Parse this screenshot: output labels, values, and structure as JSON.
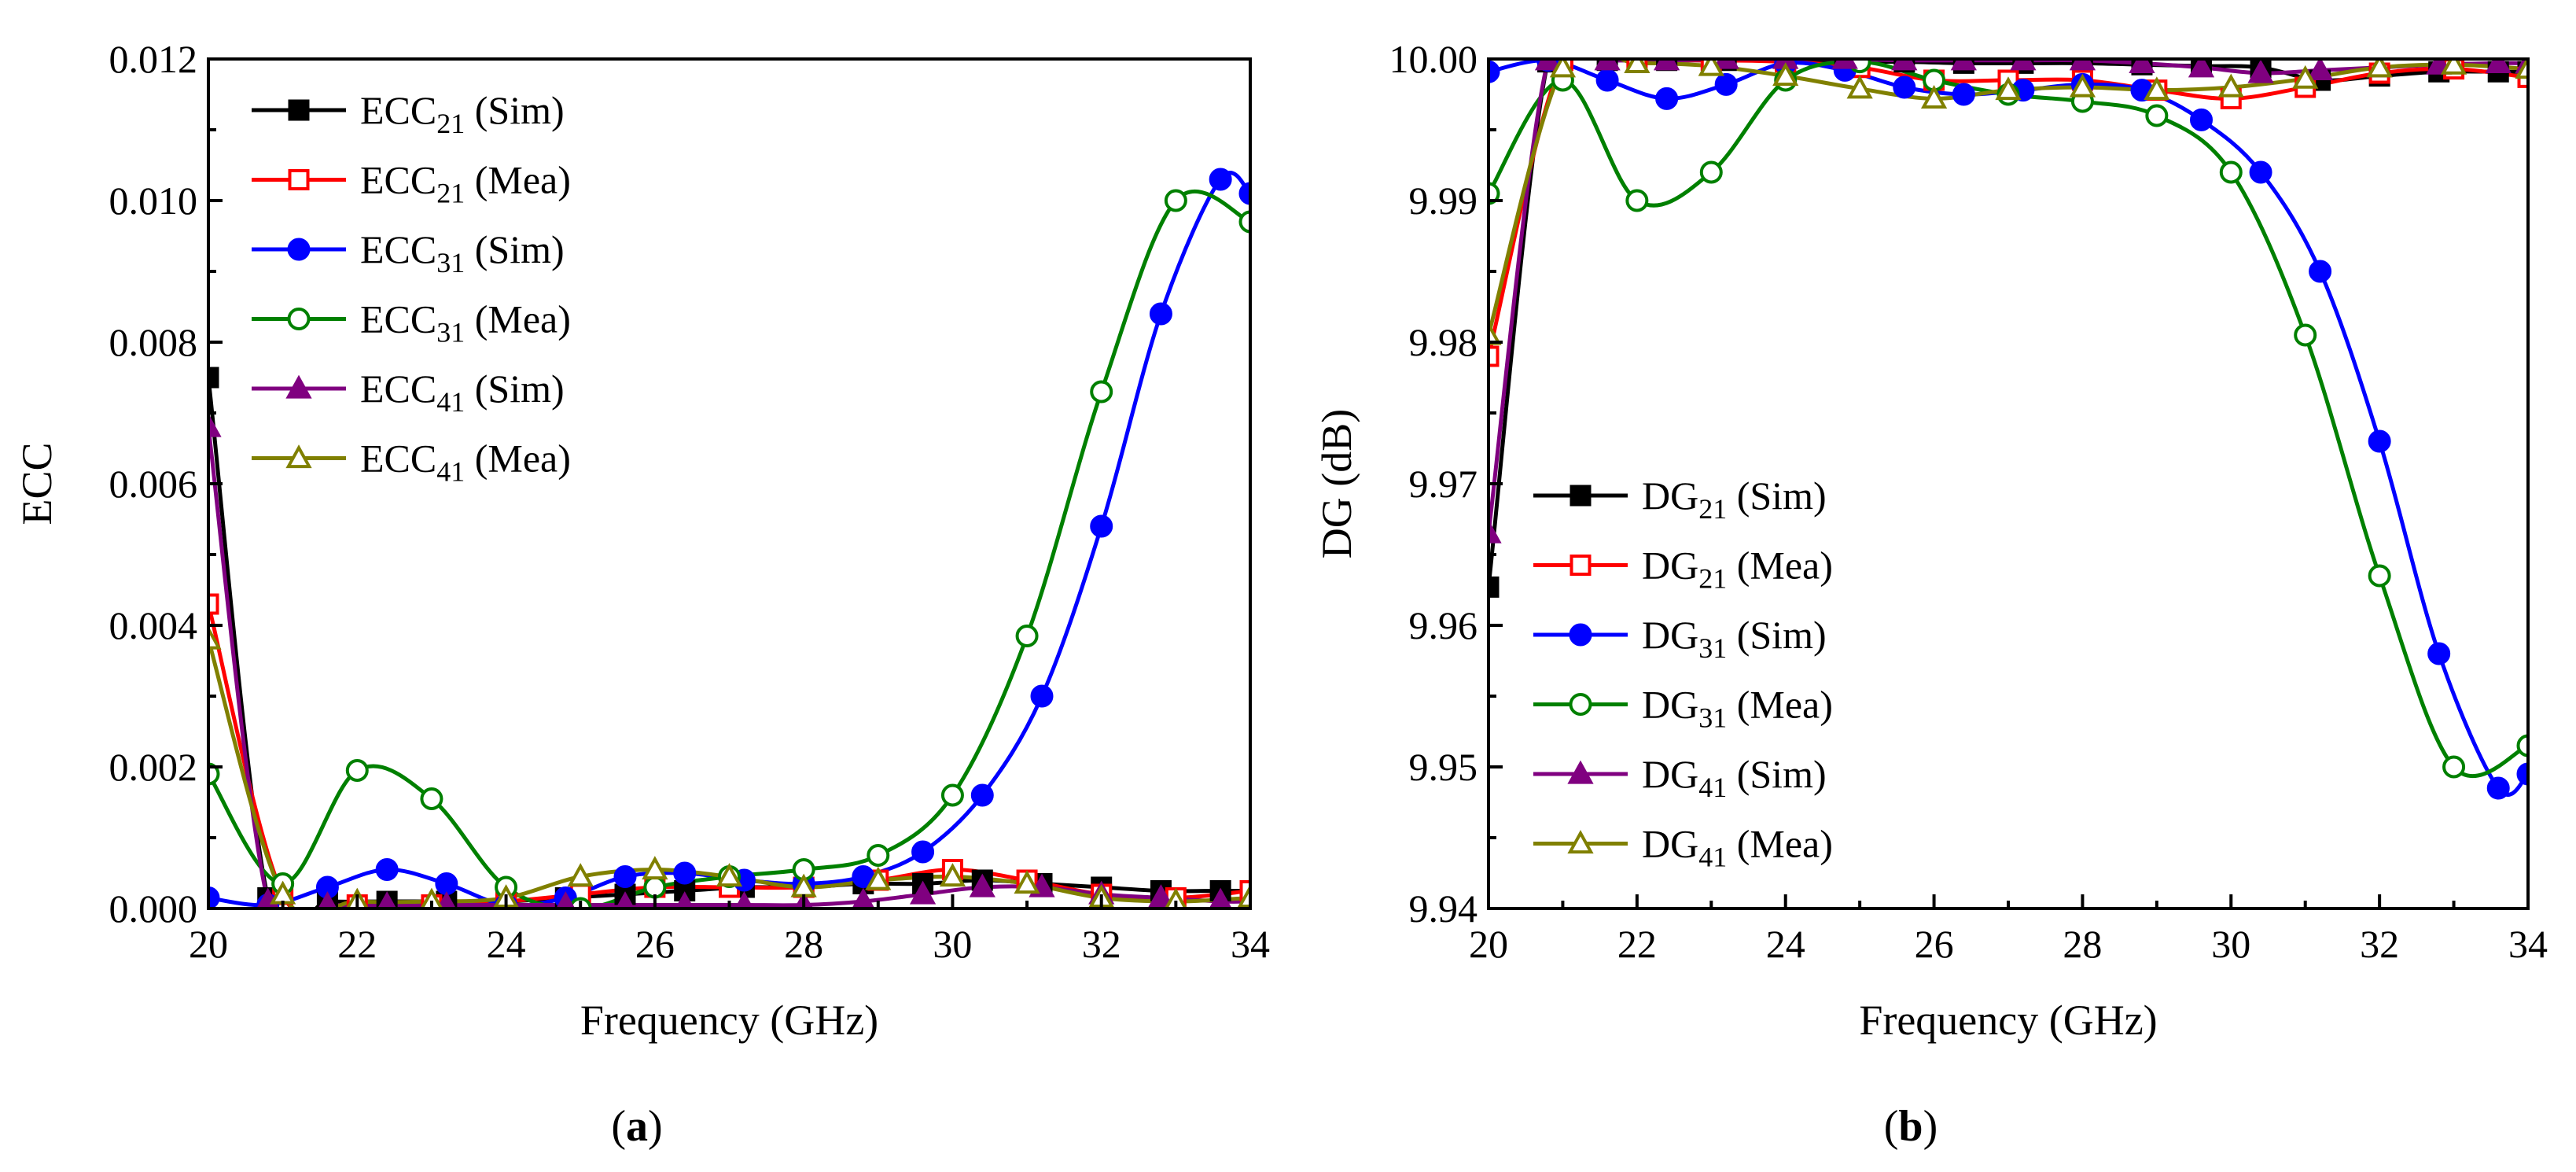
{
  "figure": {
    "panels": [
      {
        "id": "a",
        "prefix": "(",
        "letter": "a",
        "suffix": ")"
      },
      {
        "id": "b",
        "prefix": "(",
        "letter": "b",
        "suffix": ")"
      }
    ]
  },
  "series_styles": [
    {
      "color": "#000000",
      "marker": "square",
      "filled": true
    },
    {
      "color": "#ff0000",
      "marker": "square",
      "filled": false
    },
    {
      "color": "#0000ff",
      "marker": "circle",
      "filled": true
    },
    {
      "color": "#008000",
      "marker": "circle",
      "filled": false
    },
    {
      "color": "#800080",
      "marker": "triangle",
      "filled": true
    },
    {
      "color": "#808000",
      "marker": "triangle",
      "filled": false
    }
  ],
  "chart_data": [
    {
      "type": "line",
      "panel": "a",
      "xlabel": "Frequency (GHz)",
      "ylabel": "ECC",
      "xlim": [
        20,
        34
      ],
      "ylim": [
        0,
        0.012
      ],
      "xticks": [
        20,
        22,
        24,
        26,
        28,
        30,
        32,
        34
      ],
      "xtick_labels": [
        "20",
        "22",
        "24",
        "26",
        "28",
        "30",
        "32",
        "34"
      ],
      "yticks": [
        0,
        0.002,
        0.004,
        0.006,
        0.008,
        0.01,
        0.012
      ],
      "ytick_labels": [
        "0.000",
        "0.002",
        "0.004",
        "0.006",
        "0.008",
        "0.010",
        "0.012"
      ],
      "legend_position": "top-left",
      "series": [
        {
          "name": "ECC21 (Sim)",
          "legend": {
            "base": "ECC",
            "sub": "21",
            "rest": " (Sim)"
          },
          "x": [
            20,
            20.8,
            21.6,
            22.4,
            23.2,
            24,
            24.8,
            25.6,
            26.4,
            27.2,
            28,
            28.8,
            29.6,
            30.4,
            31.2,
            32,
            32.8,
            33.6,
            34
          ],
          "y": [
            0.0075,
            0.00015,
            0.0001,
            0.0001,
            0.0001,
            0.0001,
            0.00015,
            0.0002,
            0.00025,
            0.0003,
            0.0003,
            0.00035,
            0.00035,
            0.0004,
            0.00035,
            0.0003,
            0.00025,
            0.00025,
            0.00025
          ]
        },
        {
          "name": "ECC21 (Mea)",
          "legend": {
            "base": "ECC",
            "sub": "21",
            "rest": " (Mea)"
          },
          "x": [
            20,
            21,
            22,
            23,
            24,
            25,
            26,
            27,
            28,
            29,
            30,
            31,
            32,
            33,
            34
          ],
          "y": [
            0.0043,
            0.0002,
            5e-05,
            5e-05,
            0.0001,
            0.0002,
            0.0003,
            0.0003,
            0.0003,
            0.0004,
            0.00055,
            0.0004,
            0.0002,
            0.00015,
            0.00025
          ]
        },
        {
          "name": "ECC31 (Sim)",
          "legend": {
            "base": "ECC",
            "sub": "31",
            "rest": " (Sim)"
          },
          "x": [
            20,
            20.8,
            21.6,
            22.4,
            23.2,
            24,
            24.8,
            25.6,
            26.4,
            27.2,
            28,
            28.8,
            29.6,
            30.4,
            31.2,
            32,
            32.8,
            33.6,
            34
          ],
          "y": [
            0.00015,
            5e-05,
            0.0003,
            0.00055,
            0.00035,
            5e-05,
            0.00015,
            0.00045,
            0.0005,
            0.0004,
            0.00035,
            0.00045,
            0.0008,
            0.0016,
            0.003,
            0.0054,
            0.0084,
            0.0103,
            0.0101
          ]
        },
        {
          "name": "ECC31 (Mea)",
          "legend": {
            "base": "ECC",
            "sub": "31",
            "rest": " (Mea)"
          },
          "x": [
            20,
            21,
            22,
            23,
            24,
            25,
            26,
            27,
            28,
            29,
            30,
            31,
            32,
            33,
            34
          ],
          "y": [
            0.0019,
            0.00035,
            0.00195,
            0.00155,
            0.0003,
            0.0,
            0.0003,
            0.00045,
            0.00055,
            0.00075,
            0.0016,
            0.00385,
            0.0073,
            0.01,
            0.0097
          ]
        },
        {
          "name": "ECC41 (Sim)",
          "legend": {
            "base": "ECC",
            "sub": "41",
            "rest": " (Sim)"
          },
          "x": [
            20,
            20.8,
            21.6,
            22.4,
            23.2,
            24,
            24.8,
            25.6,
            26.4,
            27.2,
            28,
            28.8,
            29.6,
            30.4,
            31.2,
            32,
            32.8,
            33.6,
            34
          ],
          "y": [
            0.0068,
            0.0001,
            5e-05,
            5e-05,
            5e-05,
            5e-05,
            5e-05,
            5e-05,
            5e-05,
            5e-05,
            5e-05,
            0.0001,
            0.0002,
            0.0003,
            0.0003,
            0.0002,
            0.00015,
            0.0001,
            0.0001
          ]
        },
        {
          "name": "ECC41 (Mea)",
          "legend": {
            "base": "ECC",
            "sub": "41",
            "rest": " (Mea)"
          },
          "x": [
            20,
            21,
            22,
            23,
            24,
            25,
            26,
            27,
            28,
            29,
            30,
            31,
            32,
            33,
            34
          ],
          "y": [
            0.0038,
            0.0002,
            0.0001,
            0.0001,
            0.00015,
            0.00045,
            0.00055,
            0.00045,
            0.0003,
            0.0004,
            0.00045,
            0.00035,
            0.00015,
            0.0001,
            0.00015
          ]
        }
      ]
    },
    {
      "type": "line",
      "panel": "b",
      "xlabel": "Frequency (GHz)",
      "ylabel": "DG (dB)",
      "xlim": [
        20,
        34
      ],
      "ylim": [
        9.94,
        10.0
      ],
      "xticks": [
        20,
        22,
        24,
        26,
        28,
        30,
        32,
        34
      ],
      "xtick_labels": [
        "20",
        "22",
        "24",
        "26",
        "28",
        "30",
        "32",
        "34"
      ],
      "yticks": [
        9.94,
        9.95,
        9.96,
        9.97,
        9.98,
        9.99,
        10.0
      ],
      "ytick_labels": [
        "9.94",
        "9.95",
        "9.96",
        "9.97",
        "9.98",
        "9.99",
        "10.00"
      ],
      "legend_position": "center-left",
      "series": [
        {
          "name": "DG21 (Sim)",
          "legend": {
            "base": "DG",
            "sub": "21",
            "rest": " (Sim)"
          },
          "x": [
            20,
            20.8,
            21.6,
            22.4,
            23.2,
            24,
            24.8,
            25.6,
            26.4,
            27.2,
            28,
            28.8,
            29.6,
            30.4,
            31.2,
            32,
            32.8,
            33.6,
            34
          ],
          "y": [
            9.9627,
            9.9998,
            9.9999,
            9.9999,
            9.9999,
            9.9999,
            9.9998,
            9.9998,
            9.9997,
            9.9997,
            9.9997,
            9.9996,
            9.9995,
            9.9994,
            9.9985,
            9.9988,
            9.9991,
            9.9991,
            9.9991
          ]
        },
        {
          "name": "DG21 (Mea)",
          "legend": {
            "base": "DG",
            "sub": "21",
            "rest": " (Mea)"
          },
          "x": [
            20,
            21,
            22,
            23,
            24,
            25,
            26,
            27,
            28,
            29,
            30,
            31,
            32,
            33,
            34
          ],
          "y": [
            9.979,
            9.9999,
            9.9999,
            9.9999,
            9.9998,
            9.9994,
            9.9985,
            9.9985,
            9.9985,
            9.9978,
            9.9972,
            9.998,
            9.999,
            9.9993,
            9.9987
          ]
        },
        {
          "name": "DG31 (Sim)",
          "legend": {
            "base": "DG",
            "sub": "31",
            "rest": " (Sim)"
          },
          "x": [
            20,
            20.8,
            21.6,
            22.4,
            23.2,
            24,
            24.8,
            25.6,
            26.4,
            27.2,
            28,
            28.8,
            29.6,
            30.4,
            31.2,
            32,
            32.8,
            33.6,
            34
          ],
          "y": [
            9.9991,
            9.9999,
            9.9985,
            9.9972,
            9.9982,
            9.9997,
            9.9992,
            9.998,
            9.9975,
            9.9978,
            9.9982,
            9.9978,
            9.9957,
            9.992,
            9.985,
            9.973,
            9.958,
            9.9485,
            9.9495
          ]
        },
        {
          "name": "DG31 (Mea)",
          "legend": {
            "base": "DG",
            "sub": "31",
            "rest": " (Mea)"
          },
          "x": [
            20,
            21,
            22,
            23,
            24,
            25,
            26,
            27,
            28,
            29,
            30,
            31,
            32,
            33,
            34
          ],
          "y": [
            9.9905,
            9.9985,
            9.99,
            9.992,
            9.9985,
            9.9998,
            9.9985,
            9.9975,
            9.997,
            9.996,
            9.992,
            9.9805,
            9.9635,
            9.95,
            9.9515
          ]
        },
        {
          "name": "DG41 (Sim)",
          "legend": {
            "base": "DG",
            "sub": "41",
            "rest": " (Sim)"
          },
          "x": [
            20,
            20.8,
            21.6,
            22.4,
            23.2,
            24,
            24.8,
            25.6,
            26.4,
            27.2,
            28,
            28.8,
            29.6,
            30.4,
            31.2,
            32,
            32.8,
            33.6,
            34
          ],
          "y": [
            9.9665,
            9.9999,
            9.9999,
            9.9999,
            10.0,
            10.0,
            10.0,
            9.9999,
            9.9999,
            9.9999,
            9.9999,
            9.9997,
            9.9994,
            9.999,
            9.9992,
            9.9994,
            9.9996,
            9.9997,
            9.9997
          ]
        },
        {
          "name": "DG41 (Mea)",
          "legend": {
            "base": "DG",
            "sub": "41",
            "rest": " (Mea)"
          },
          "x": [
            20,
            21,
            22,
            23,
            24,
            25,
            26,
            27,
            28,
            29,
            30,
            31,
            32,
            33,
            34
          ],
          "y": [
            9.9805,
            9.9994,
            9.9997,
            9.9995,
            9.9988,
            9.9979,
            9.9972,
            9.9978,
            9.998,
            9.9978,
            9.998,
            9.9986,
            9.9994,
            9.9996,
            9.9993
          ]
        }
      ]
    }
  ]
}
